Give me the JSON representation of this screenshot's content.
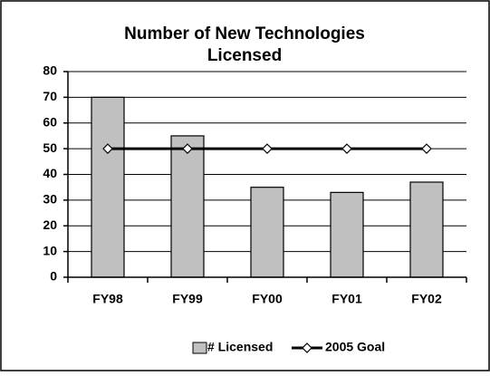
{
  "chart_data": {
    "type": "bar",
    "title": [
      "Number of New Technologies",
      "Licensed"
    ],
    "categories": [
      "FY98",
      "FY99",
      "FY00",
      "FY01",
      "FY02"
    ],
    "series": [
      {
        "name": "# Licensed",
        "type": "bar",
        "color": "#c0c0c0",
        "values": [
          70,
          55,
          35,
          33,
          37
        ]
      },
      {
        "name": "2005 Goal",
        "type": "line",
        "color": "#000000",
        "values": [
          50,
          50,
          50,
          50,
          50
        ]
      }
    ],
    "ylim": [
      0,
      80
    ],
    "yticks": [
      0,
      10,
      20,
      30,
      40,
      50,
      60,
      70,
      80
    ],
    "grid": true,
    "legend": "bottom"
  }
}
